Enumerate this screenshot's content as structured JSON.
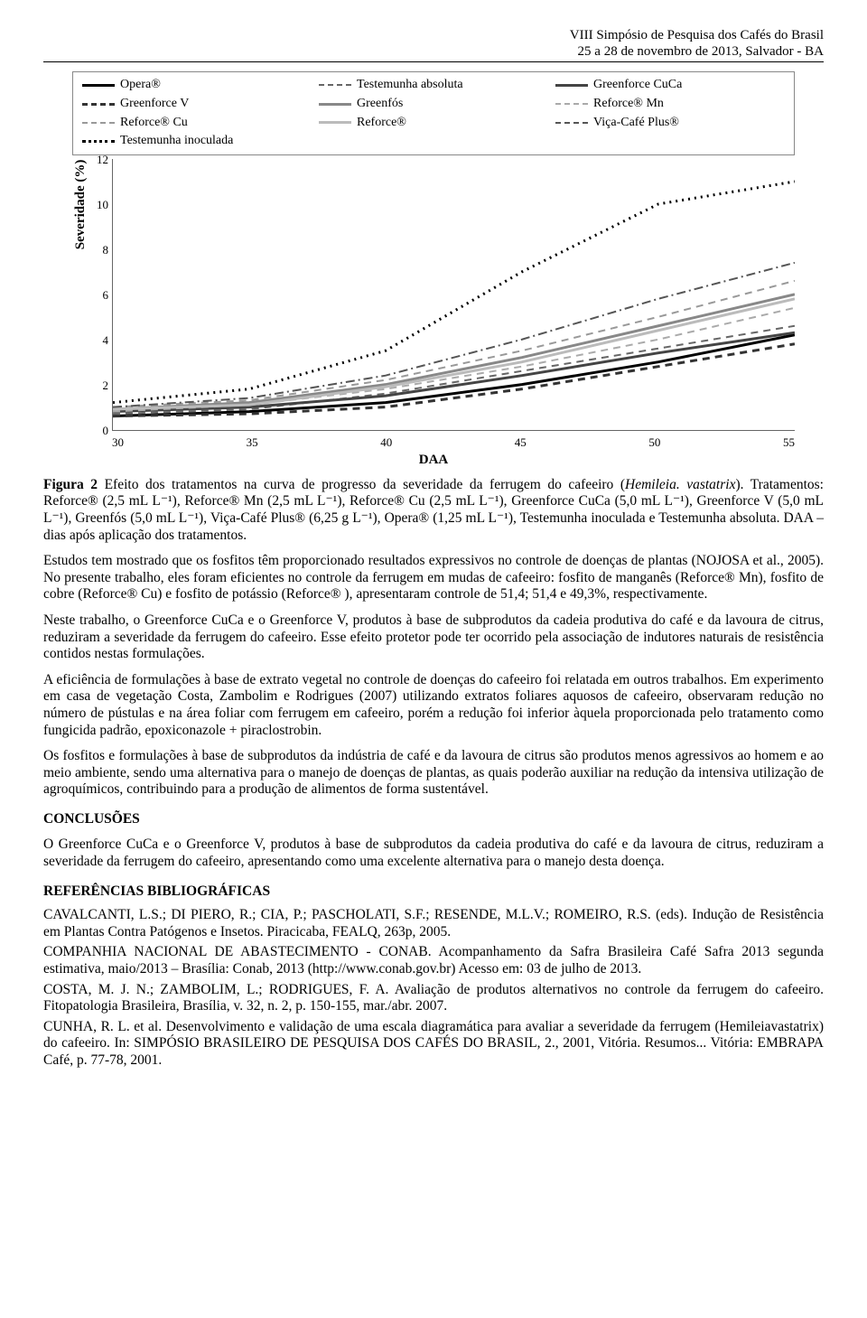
{
  "header": {
    "line1": "VIII Simpósio de Pesquisa dos Cafés do Brasil",
    "line2": "25 a 28 de novembro de 2013, Salvador - BA"
  },
  "chart": {
    "type": "line",
    "y_label": "Severidade (%)",
    "x_label": "DAA",
    "ylim": [
      0,
      12
    ],
    "ytick_step": 2,
    "xlim": [
      30,
      55
    ],
    "xtick_step": 5,
    "background_color": "#ffffff",
    "axis_color": "#666666",
    "series": [
      {
        "name": "Opera®",
        "color": "#000000",
        "dash": "solid",
        "width": 3,
        "x": [
          30,
          35,
          40,
          45,
          50,
          55
        ],
        "y": [
          0.6,
          0.8,
          1.2,
          2.0,
          3.0,
          4.2
        ]
      },
      {
        "name": "Testemunha absoluta",
        "color": "#666666",
        "dash": "dashed",
        "width": 2,
        "x": [
          30,
          35,
          40,
          45,
          50,
          55
        ],
        "y": [
          0.7,
          0.9,
          1.6,
          2.6,
          3.6,
          4.6
        ]
      },
      {
        "name": "Greenforce CuCa",
        "color": "#444444",
        "dash": "solid",
        "width": 3,
        "x": [
          30,
          35,
          40,
          45,
          50,
          55
        ],
        "y": [
          0.8,
          1.0,
          1.5,
          2.4,
          3.4,
          4.3
        ]
      },
      {
        "name": "Greenforce V",
        "color": "#333333",
        "dash": "dashed",
        "width": 3,
        "x": [
          30,
          35,
          40,
          45,
          50,
          55
        ],
        "y": [
          0.6,
          0.7,
          1.0,
          1.8,
          2.8,
          3.8
        ]
      },
      {
        "name": "Greenfós",
        "color": "#888888",
        "dash": "solid",
        "width": 3,
        "x": [
          30,
          35,
          40,
          45,
          50,
          55
        ],
        "y": [
          0.9,
          1.2,
          2.0,
          3.2,
          4.6,
          6.0
        ]
      },
      {
        "name": "Reforce® Mn",
        "color": "#aaaaaa",
        "dash": "dashed",
        "width": 2,
        "x": [
          30,
          35,
          40,
          45,
          50,
          55
        ],
        "y": [
          0.8,
          1.1,
          1.8,
          2.8,
          4.0,
          5.4
        ]
      },
      {
        "name": "Reforce® Cu",
        "color": "#999999",
        "dash": "dashed",
        "width": 2,
        "x": [
          30,
          35,
          40,
          45,
          50,
          55
        ],
        "y": [
          1.0,
          1.3,
          2.2,
          3.5,
          5.0,
          6.6
        ]
      },
      {
        "name": "Reforce®",
        "color": "#bbbbbb",
        "dash": "solid",
        "width": 3,
        "x": [
          30,
          35,
          40,
          45,
          50,
          55
        ],
        "y": [
          0.9,
          1.1,
          1.9,
          3.0,
          4.4,
          5.8
        ]
      },
      {
        "name": "Viça-Café Plus®",
        "color": "#555555",
        "dash": "dashdot",
        "width": 2,
        "x": [
          30,
          35,
          40,
          45,
          50,
          55
        ],
        "y": [
          1.0,
          1.4,
          2.4,
          4.0,
          5.8,
          7.4
        ]
      },
      {
        "name": "Testemunha inoculada",
        "color": "#000000",
        "dash": "dotted",
        "width": 3,
        "x": [
          30,
          35,
          40,
          45,
          50,
          55
        ],
        "y": [
          1.2,
          1.8,
          3.5,
          7.0,
          10.0,
          11.0
        ]
      }
    ],
    "legend_cols": 3,
    "legend_fontsize": 14
  },
  "caption": {
    "label": "Figura 2",
    "text_a": " Efeito dos tratamentos na curva de progresso da severidade da ferrugem do cafeeiro (",
    "species": "Hemileia. vastatrix",
    "text_b": "). Tratamentos: Reforce® (2,5 mL L⁻¹), Reforce® Mn (2,5 mL L⁻¹), Reforce® Cu (2,5 mL L⁻¹), Greenforce CuCa (5,0 mL L⁻¹), Greenforce V (5,0 mL L⁻¹), Greenfós (5,0 mL L⁻¹), Viça-Café Plus® (6,25 g L⁻¹), Opera® (1,25 mL L⁻¹), Testemunha inoculada e Testemunha absoluta. DAA – dias após aplicação dos tratamentos."
  },
  "body": {
    "p1": "Estudos tem mostrado que os fosfitos têm proporcionado resultados expressivos no controle de doenças de plantas (NOJOSA et al., 2005). No presente trabalho, eles foram eficientes no controle da ferrugem em mudas de cafeeiro: fosfito de manganês (Reforce® Mn), fosfito de cobre (Reforce® Cu) e fosfito de potássio (Reforce® ), apresentaram controle de 51,4; 51,4 e 49,3%, respectivamente.",
    "p2": "Neste trabalho, o Greenforce CuCa e o Greenforce V, produtos à base de subprodutos da cadeia produtiva do café e da lavoura de citrus, reduziram a severidade da ferrugem do cafeeiro. Esse efeito protetor pode ter ocorrido pela associação de indutores naturais de resistência contidos nestas formulações.",
    "p3": "A eficiência de formulações à base de extrato vegetal no controle de doenças do cafeeiro foi relatada em outros trabalhos. Em experimento em casa de vegetação Costa, Zambolim e Rodrigues (2007) utilizando extratos foliares aquosos de cafeeiro, observaram redução no número de pústulas e na área foliar com ferrugem em cafeeiro, porém a redução foi inferior àquela proporcionada pelo tratamento como fungicida padrão, epoxiconazole + piraclostrobin.",
    "p4": "Os fosfitos e formulações à base de subprodutos da indústria de café e da lavoura de citrus são produtos menos agressivos ao homem e ao meio ambiente, sendo uma alternativa para o manejo de doenças de plantas, as quais poderão auxiliar na redução da intensiva utilização de agroquímicos, contribuindo para a produção de alimentos de forma sustentável."
  },
  "conclusions": {
    "head": "CONCLUSÕES",
    "text": "O Greenforce CuCa e o Greenforce V, produtos à base de subprodutos da cadeia produtiva do café e da lavoura de citrus, reduziram a severidade da ferrugem do cafeeiro, apresentando como uma excelente alternativa para o manejo desta doença."
  },
  "references": {
    "head": "REFERÊNCIAS BIBLIOGRÁFICAS",
    "items": [
      "CAVALCANTI, L.S.; DI PIERO, R.; CIA, P.; PASCHOLATI, S.F.; RESENDE, M.L.V.; ROMEIRO, R.S. (eds). Indução de Resistência em Plantas Contra Patógenos e Insetos. Piracicaba, FEALQ, 263p, 2005.",
      "COMPANHIA NACIONAL DE ABASTECIMENTO - CONAB. Acompanhamento da Safra Brasileira Café Safra 2013 segunda estimativa, maio/2013 – Brasília: Conab, 2013 (http://www.conab.gov.br) Acesso em: 03 de julho de 2013.",
      "COSTA, M. J. N.; ZAMBOLIM, L.; RODRIGUES, F. A. Avaliação de produtos alternativos no controle da ferrugem do cafeeiro. Fitopatologia Brasileira, Brasília, v. 32, n. 2, p. 150-155, mar./abr. 2007.",
      "CUNHA, R. L. et al. Desenvolvimento e validação de uma escala diagramática para avaliar a severidade da ferrugem (Hemileiavastatrix) do cafeeiro. In: SIMPÓSIO BRASILEIRO DE PESQUISA DOS CAFÉS DO BRASIL, 2., 2001, Vitória. Resumos... Vitória: EMBRAPA Café, p. 77-78, 2001."
    ]
  }
}
